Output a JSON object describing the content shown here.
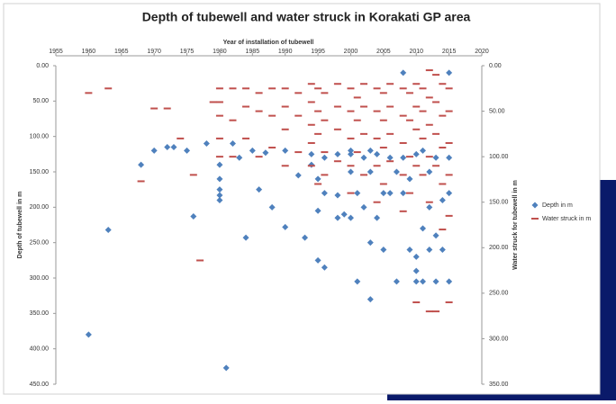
{
  "chart_data": {
    "type": "scatter",
    "title": "Depth of tubewell and water struck in Korakati GP area",
    "x_label": "Year of installation  of tubewell",
    "y_label": "Depth of tubewell in m",
    "y2_label": "Water struck  for tubewell in m",
    "xlim": [
      1955,
      2020
    ],
    "xticks": [
      1955,
      1960,
      1965,
      1970,
      1975,
      1980,
      1985,
      1990,
      1995,
      2000,
      2005,
      2010,
      2015,
      2020
    ],
    "ylim": [
      0,
      450
    ],
    "yticks": [
      {
        "value": 0,
        "label": "0.00"
      },
      {
        "value": 50,
        "label": "50.00"
      },
      {
        "value": 100,
        "label": "100.00"
      },
      {
        "value": 150,
        "label": "150.00"
      },
      {
        "value": 200,
        "label": "200.00"
      },
      {
        "value": 250,
        "label": "250.00"
      },
      {
        "value": 300,
        "label": "300.00"
      },
      {
        "value": 350,
        "label": "350.00"
      },
      {
        "value": 400,
        "label": "400.00"
      },
      {
        "value": 450,
        "label": "450.00"
      }
    ],
    "y2lim": [
      0,
      350
    ],
    "y2ticks": [
      {
        "value": 0,
        "label": "0.00"
      },
      {
        "value": 50,
        "label": "50.00"
      },
      {
        "value": 100,
        "label": "100.00"
      },
      {
        "value": 150,
        "label": "150.00"
      },
      {
        "value": 200,
        "label": "200.00"
      },
      {
        "value": 250,
        "label": "250.00"
      },
      {
        "value": 300,
        "label": "300.00"
      },
      {
        "value": 350,
        "label": "350.00"
      }
    ],
    "y_inverted": true,
    "legend": "right",
    "series": [
      {
        "name": "Depth in m",
        "color": "#4f81bd",
        "marker": "diamond",
        "x": [
          1960,
          1963,
          1968,
          1970,
          1972,
          1973,
          1975,
          1976,
          1978,
          1980,
          1980,
          1980,
          1980,
          1980,
          1981,
          1982,
          1983,
          1984,
          1985,
          1986,
          1987,
          1988,
          1990,
          1990,
          1992,
          1993,
          1994,
          1994,
          1995,
          1995,
          1995,
          1996,
          1996,
          1996,
          1998,
          1998,
          1998,
          1999,
          2000,
          2000,
          2000,
          2000,
          2001,
          2001,
          2002,
          2002,
          2003,
          2003,
          2003,
          2003,
          2004,
          2004,
          2005,
          2005,
          2006,
          2006,
          2007,
          2007,
          2008,
          2008,
          2008,
          2009,
          2009,
          2010,
          2010,
          2010,
          2010,
          2011,
          2011,
          2011,
          2012,
          2012,
          2012,
          2013,
          2013,
          2013,
          2014,
          2014,
          2015,
          2015,
          2015,
          2015
        ],
        "values": [
          380,
          232,
          140,
          120,
          115,
          115,
          120,
          213,
          110,
          190,
          183,
          175,
          160,
          140,
          427,
          110,
          130,
          243,
          120,
          175,
          123,
          200,
          120,
          228,
          155,
          243,
          125,
          140,
          275,
          205,
          160,
          285,
          180,
          130,
          215,
          183,
          125,
          210,
          215,
          150,
          125,
          120,
          305,
          180,
          200,
          130,
          330,
          250,
          150,
          120,
          215,
          125,
          260,
          180,
          180,
          130,
          305,
          150,
          10,
          130,
          180,
          260,
          160,
          305,
          290,
          270,
          125,
          305,
          230,
          120,
          260,
          200,
          150,
          305,
          240,
          130,
          260,
          190,
          305,
          10,
          130,
          180
        ]
      },
      {
        "name": "Water struck in m",
        "color": "#c0504d",
        "marker": "dash",
        "axis": "y2",
        "x": [
          1960,
          1963,
          1968,
          1970,
          1972,
          1974,
          1976,
          1977,
          1979,
          1980,
          1980,
          1980,
          1980,
          1980,
          1982,
          1982,
          1982,
          1984,
          1984,
          1984,
          1986,
          1986,
          1986,
          1988,
          1988,
          1988,
          1990,
          1990,
          1990,
          1990,
          1992,
          1992,
          1992,
          1994,
          1994,
          1994,
          1994,
          1994,
          1995,
          1995,
          1995,
          1995,
          1996,
          1996,
          1996,
          1996,
          1998,
          1998,
          1998,
          1998,
          2000,
          2000,
          2000,
          2000,
          2000,
          2001,
          2001,
          2001,
          2002,
          2002,
          2002,
          2002,
          2004,
          2004,
          2004,
          2004,
          2004,
          2005,
          2005,
          2005,
          2005,
          2006,
          2006,
          2006,
          2006,
          2008,
          2008,
          2008,
          2008,
          2008,
          2009,
          2009,
          2009,
          2009,
          2010,
          2010,
          2010,
          2010,
          2010,
          2011,
          2011,
          2011,
          2011,
          2012,
          2012,
          2012,
          2012,
          2012,
          2012,
          2013,
          2013,
          2013,
          2013,
          2013,
          2014,
          2014,
          2014,
          2014,
          2014,
          2015,
          2015,
          2015,
          2015,
          2015,
          2015
        ],
        "values": [
          30,
          25,
          127,
          47,
          47,
          80,
          120,
          214,
          40,
          25,
          40,
          55,
          80,
          100,
          25,
          60,
          100,
          25,
          45,
          80,
          30,
          50,
          100,
          25,
          55,
          90,
          25,
          45,
          70,
          110,
          30,
          55,
          95,
          20,
          40,
          65,
          85,
          110,
          25,
          50,
          75,
          130,
          30,
          60,
          95,
          120,
          20,
          45,
          70,
          105,
          25,
          50,
          80,
          110,
          140,
          35,
          60,
          95,
          20,
          45,
          75,
          120,
          25,
          50,
          80,
          110,
          150,
          30,
          60,
          90,
          130,
          20,
          45,
          75,
          105,
          25,
          55,
          85,
          120,
          160,
          30,
          60,
          100,
          140,
          20,
          45,
          70,
          110,
          260,
          25,
          50,
          80,
          120,
          5,
          35,
          65,
          100,
          150,
          270,
          10,
          40,
          75,
          110,
          270,
          20,
          55,
          90,
          130,
          180,
          25,
          50,
          85,
          120,
          165,
          260
        ]
      }
    ]
  }
}
